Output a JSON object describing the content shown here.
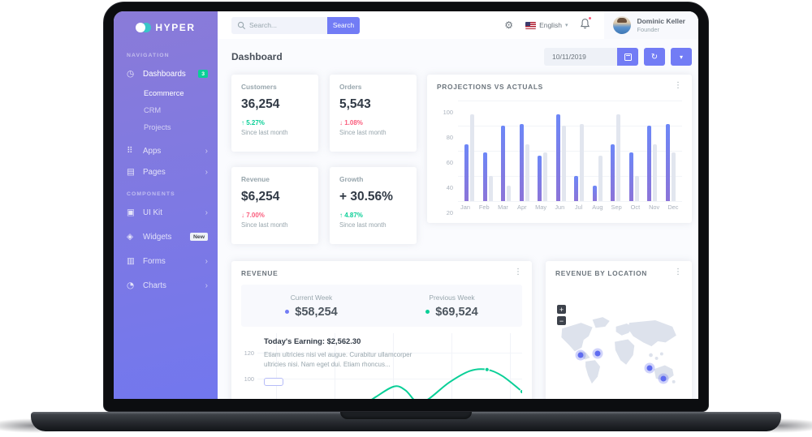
{
  "colors": {
    "primary": "#727cf5",
    "success": "#0acf97",
    "danger": "#fa5c7c",
    "bar_gray": "#e2e6ef",
    "sidebar_top": "#8a7bd8",
    "sidebar_bottom": "#7277ee"
  },
  "sidebar": {
    "logo_text": "HYPER",
    "nav_section": "NAVIGATION",
    "components_section": "COMPONENTS",
    "dashboards": {
      "label": "Dashboards",
      "badge": "3"
    },
    "sub_items": {
      "0": "Ecommerce",
      "1": "CRM",
      "2": "Projects"
    },
    "apps": "Apps",
    "pages": "Pages",
    "ui_kit": "UI Kit",
    "widgets": {
      "label": "Widgets",
      "badge": "New"
    },
    "forms": "Forms",
    "charts": "Charts"
  },
  "topbar": {
    "search_placeholder": "Search...",
    "search_button": "Search",
    "language": "English",
    "user_name": "Dominic Keller",
    "user_role": "Founder"
  },
  "page": {
    "title": "Dashboard",
    "date_value": "10/11/2019"
  },
  "stats": [
    {
      "label": "Customers",
      "value": "36,254",
      "delta": "5.27%",
      "direction": "up",
      "caption": "Since last month"
    },
    {
      "label": "Orders",
      "value": "5,543",
      "delta": "1.08%",
      "direction": "down",
      "caption": "Since last month"
    },
    {
      "label": "Revenue",
      "value": "$6,254",
      "delta": "7.00%",
      "direction": "down",
      "caption": "Since last month"
    },
    {
      "label": "Growth",
      "value": "+ 30.56%",
      "delta": "4.87%",
      "direction": "up",
      "caption": "Since last month"
    }
  ],
  "revenue": {
    "title": "REVENUE",
    "current_week_label": "Current Week",
    "current_week_value": "$58,254",
    "previous_week_label": "Previous Week",
    "previous_week_value": "$69,524",
    "earning_title": "Today's Earning: $2,562.30",
    "earning_text": "Etiam ultricies nisi vel augue. Curabitur ullamcorper ultricies nisi. Nam eget dui. Etiam rhoncus..."
  },
  "location": {
    "title": "REVENUE BY LOCATION",
    "zoom_in": "+",
    "zoom_out": "−",
    "markers": [
      {
        "region": "us-west",
        "x": 0.2,
        "y": 0.5
      },
      {
        "region": "us-east",
        "x": 0.33,
        "y": 0.48
      },
      {
        "region": "southeast-asia",
        "x": 0.74,
        "y": 0.66
      },
      {
        "region": "australia",
        "x": 0.85,
        "y": 0.79
      }
    ]
  },
  "chart_data": [
    {
      "type": "bar",
      "title": "PROJECTIONS VS ACTUALS",
      "categories": [
        "Jan",
        "Feb",
        "Mar",
        "Apr",
        "May",
        "Jun",
        "Jul",
        "Aug",
        "Sep",
        "Oct",
        "Nov",
        "Dec"
      ],
      "series": [
        {
          "name": "Actuals",
          "color": "#727cf5",
          "values": [
            65,
            59,
            80,
            81,
            56,
            89,
            40,
            32,
            65,
            59,
            80,
            81
          ]
        },
        {
          "name": "Projections",
          "color": "#e2e6ef",
          "values": [
            89,
            40,
            32,
            65,
            59,
            80,
            81,
            56,
            89,
            40,
            65,
            59
          ]
        }
      ],
      "ylim": [
        20,
        100
      ],
      "yticks": [
        20,
        40,
        60,
        80,
        100
      ],
      "grid": true,
      "legend": false
    },
    {
      "type": "line",
      "title": "REVENUE",
      "ylabel_ticks_visible": [
        120,
        100
      ],
      "series": [
        {
          "name": "Revenue",
          "color": "#0acf97"
        }
      ],
      "note": "chart partially cut off by laptop bezel; values estimated",
      "points_est": [
        [
          0.4,
          74
        ],
        [
          0.48,
          86
        ],
        [
          0.545,
          94
        ],
        [
          0.585,
          91
        ],
        [
          0.625,
          82
        ],
        [
          0.665,
          84
        ],
        [
          0.74,
          97
        ],
        [
          0.815,
          106
        ],
        [
          0.875,
          107
        ],
        [
          0.93,
          102
        ],
        [
          1.0,
          90
        ]
      ],
      "markers_est": [
        [
          0.875,
          107
        ],
        [
          1.0,
          90
        ]
      ],
      "grid": true
    }
  ]
}
